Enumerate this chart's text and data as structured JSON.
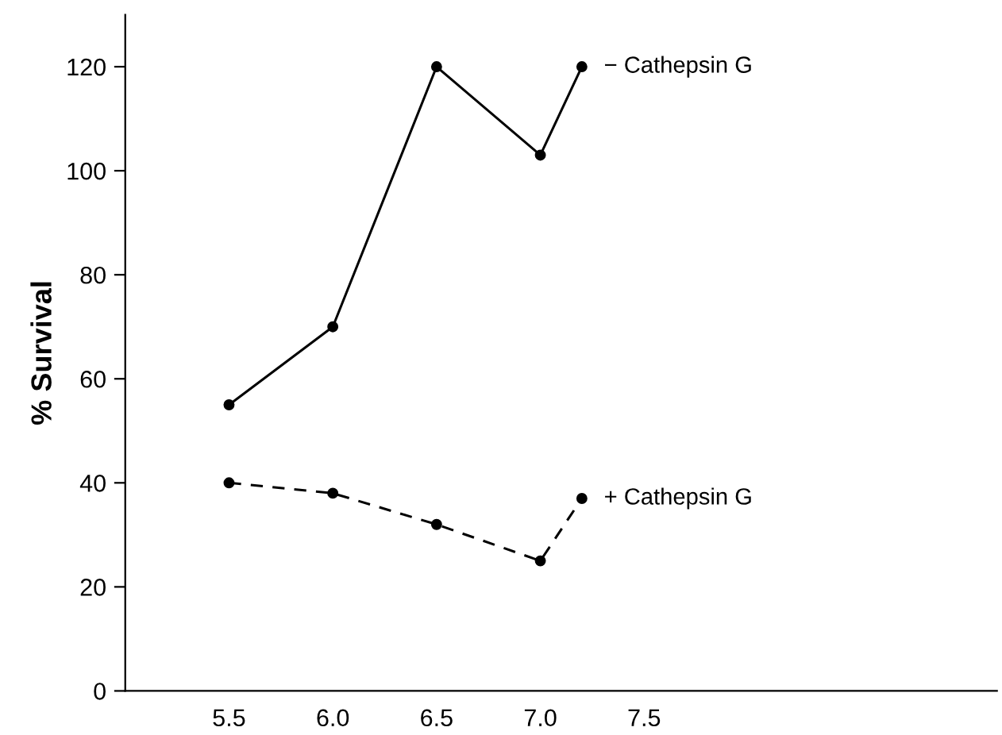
{
  "chart_data": {
    "type": "line",
    "ylabel": "% Survival",
    "x": [
      5.5,
      6.0,
      6.5,
      7.0,
      7.2
    ],
    "series": [
      {
        "name": "− Cathepsin G",
        "color": "#000000",
        "line_style": "solid",
        "values": [
          55,
          70,
          120,
          103,
          120
        ]
      },
      {
        "name": "+ Cathepsin G",
        "color": "#000000",
        "line_style": "dashed",
        "values": [
          40,
          38,
          32,
          25,
          37
        ]
      }
    ],
    "marker": "circle",
    "xlim": [
      5.0,
      9.2
    ],
    "xticks": [
      {
        "value": 5.5,
        "label": "5.5"
      },
      {
        "value": 6.0,
        "label": "6.0"
      },
      {
        "value": 6.5,
        "label": "6.5"
      },
      {
        "value": 7.0,
        "label": "7.0"
      },
      {
        "value": 7.5,
        "label": "7.5"
      }
    ],
    "ylim": [
      0,
      130
    ],
    "yticks": [
      0,
      20,
      40,
      60,
      80,
      100,
      120
    ],
    "grid": false,
    "legend": false
  }
}
